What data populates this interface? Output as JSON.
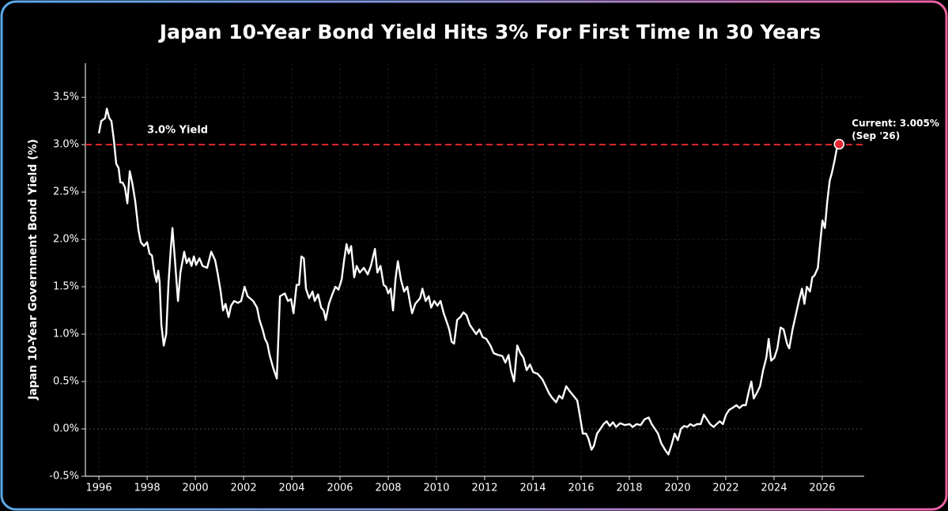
{
  "chart_data": {
    "type": "line",
    "title": "Japan 10-Year Bond Yield Hits 3% For First Time In 30 Years",
    "y_label": "Japan 10-Year Government Bond Yield (%)",
    "x": [
      1996.0,
      1996.1,
      1996.26,
      1996.33,
      1996.43,
      1996.52,
      1996.62,
      1996.72,
      1996.82,
      1996.89,
      1996.98,
      1997.08,
      1997.18,
      1997.28,
      1997.38,
      1997.51,
      1997.64,
      1997.74,
      1997.87,
      1998.0,
      1998.1,
      1998.2,
      1998.3,
      1998.39,
      1998.46,
      1998.52,
      1998.59,
      1998.69,
      1998.79,
      1998.89,
      1998.98,
      1999.05,
      1999.15,
      1999.28,
      1999.38,
      1999.54,
      1999.64,
      1999.74,
      1999.84,
      1999.94,
      2000.03,
      2000.17,
      2000.3,
      2000.49,
      2000.66,
      2000.82,
      2000.92,
      2001.05,
      2001.15,
      2001.25,
      2001.38,
      2001.48,
      2001.61,
      2001.77,
      2001.9,
      2002.04,
      2002.17,
      2002.4,
      2002.56,
      2002.66,
      2002.79,
      2002.89,
      2002.99,
      2003.08,
      2003.22,
      2003.38,
      2003.51,
      2003.71,
      2003.84,
      2003.97,
      2004.07,
      2004.2,
      2004.3,
      2004.4,
      2004.5,
      2004.59,
      2004.72,
      2004.86,
      2004.95,
      2005.09,
      2005.22,
      2005.32,
      2005.41,
      2005.54,
      2005.68,
      2005.81,
      2005.94,
      2006.07,
      2006.17,
      2006.27,
      2006.36,
      2006.46,
      2006.59,
      2006.69,
      2006.82,
      2006.99,
      2007.15,
      2007.28,
      2007.45,
      2007.55,
      2007.68,
      2007.81,
      2007.91,
      2008.0,
      2008.1,
      2008.2,
      2008.3,
      2008.4,
      2008.53,
      2008.66,
      2008.79,
      2008.89,
      2008.99,
      2009.12,
      2009.32,
      2009.42,
      2009.55,
      2009.68,
      2009.78,
      2009.91,
      2010.04,
      2010.17,
      2010.3,
      2010.4,
      2010.53,
      2010.63,
      2010.73,
      2010.86,
      2010.99,
      2011.12,
      2011.25,
      2011.38,
      2011.51,
      2011.65,
      2011.78,
      2011.91,
      2012.07,
      2012.24,
      2012.37,
      2012.56,
      2012.73,
      2012.86,
      2012.99,
      2013.09,
      2013.22,
      2013.35,
      2013.48,
      2013.61,
      2013.74,
      2013.88,
      2014.01,
      2014.2,
      2014.4,
      2014.53,
      2014.66,
      2014.79,
      2014.96,
      2015.09,
      2015.22,
      2015.38,
      2015.52,
      2015.68,
      2015.84,
      2015.94,
      2016.07,
      2016.2,
      2016.3,
      2016.43,
      2016.53,
      2016.66,
      2016.8,
      2016.93,
      2017.06,
      2017.19,
      2017.32,
      2017.45,
      2017.62,
      2017.81,
      2018.01,
      2018.14,
      2018.3,
      2018.47,
      2018.63,
      2018.8,
      2018.93,
      2019.06,
      2019.19,
      2019.32,
      2019.48,
      2019.62,
      2019.75,
      2019.88,
      2020.01,
      2020.14,
      2020.27,
      2020.4,
      2020.53,
      2020.67,
      2020.8,
      2020.96,
      2021.09,
      2021.22,
      2021.35,
      2021.49,
      2021.62,
      2021.75,
      2021.88,
      2022.01,
      2022.14,
      2022.27,
      2022.44,
      2022.57,
      2022.7,
      2022.83,
      2022.96,
      2023.06,
      2023.16,
      2023.29,
      2023.42,
      2023.55,
      2023.68,
      2023.78,
      2023.88,
      2024.01,
      2024.14,
      2024.27,
      2024.4,
      2024.54,
      2024.63,
      2024.77,
      2024.9,
      2025.03,
      2025.16,
      2025.26,
      2025.36,
      2025.49,
      2025.59,
      2025.68,
      2025.82,
      2025.91,
      2026.01,
      2026.11,
      2026.21,
      2026.31,
      2026.4,
      2026.5,
      2026.6,
      2026.7
    ],
    "series": [
      {
        "name": "Japan 10-Year Bond Yield",
        "color": "#ffffff",
        "values": [
          3.12,
          3.25,
          3.28,
          3.38,
          3.28,
          3.25,
          3.05,
          2.8,
          2.75,
          2.6,
          2.6,
          2.55,
          2.38,
          2.72,
          2.6,
          2.4,
          2.1,
          1.97,
          1.93,
          1.97,
          1.85,
          1.83,
          1.65,
          1.55,
          1.67,
          1.55,
          1.1,
          0.88,
          1.0,
          1.55,
          1.9,
          2.12,
          1.8,
          1.35,
          1.65,
          1.87,
          1.75,
          1.8,
          1.72,
          1.82,
          1.73,
          1.8,
          1.72,
          1.7,
          1.87,
          1.78,
          1.65,
          1.45,
          1.25,
          1.32,
          1.18,
          1.3,
          1.35,
          1.33,
          1.35,
          1.5,
          1.4,
          1.35,
          1.28,
          1.15,
          1.05,
          0.95,
          0.9,
          0.78,
          0.65,
          0.53,
          1.4,
          1.43,
          1.35,
          1.37,
          1.22,
          1.52,
          1.52,
          1.82,
          1.8,
          1.48,
          1.38,
          1.45,
          1.35,
          1.42,
          1.28,
          1.25,
          1.15,
          1.32,
          1.42,
          1.5,
          1.47,
          1.58,
          1.78,
          1.95,
          1.85,
          1.93,
          1.6,
          1.72,
          1.65,
          1.7,
          1.63,
          1.72,
          1.9,
          1.65,
          1.72,
          1.52,
          1.5,
          1.43,
          1.48,
          1.25,
          1.58,
          1.77,
          1.57,
          1.45,
          1.5,
          1.35,
          1.22,
          1.32,
          1.38,
          1.48,
          1.35,
          1.4,
          1.28,
          1.35,
          1.3,
          1.35,
          1.22,
          1.15,
          1.05,
          0.92,
          0.9,
          1.15,
          1.18,
          1.23,
          1.2,
          1.1,
          1.05,
          1.0,
          1.05,
          0.97,
          0.95,
          0.88,
          0.8,
          0.78,
          0.77,
          0.7,
          0.78,
          0.62,
          0.5,
          0.88,
          0.8,
          0.75,
          0.62,
          0.68,
          0.6,
          0.58,
          0.52,
          0.45,
          0.38,
          0.33,
          0.28,
          0.35,
          0.32,
          0.45,
          0.4,
          0.35,
          0.3,
          0.15,
          -0.05,
          -0.05,
          -0.1,
          -0.22,
          -0.18,
          -0.05,
          0.0,
          0.05,
          0.08,
          0.03,
          0.07,
          0.02,
          0.06,
          0.04,
          0.05,
          0.02,
          0.05,
          0.04,
          0.1,
          0.12,
          0.05,
          0.0,
          -0.05,
          -0.15,
          -0.22,
          -0.27,
          -0.17,
          -0.05,
          -0.12,
          0.0,
          0.03,
          0.02,
          0.05,
          0.03,
          0.05,
          0.05,
          0.15,
          0.1,
          0.05,
          0.02,
          0.05,
          0.08,
          0.05,
          0.15,
          0.2,
          0.22,
          0.25,
          0.22,
          0.25,
          0.25,
          0.4,
          0.5,
          0.32,
          0.38,
          0.45,
          0.62,
          0.75,
          0.95,
          0.72,
          0.75,
          0.85,
          1.07,
          1.05,
          0.9,
          0.85,
          1.05,
          1.2,
          1.35,
          1.48,
          1.32,
          1.5,
          1.45,
          1.6,
          1.62,
          1.7,
          1.95,
          2.2,
          2.12,
          2.4,
          2.62,
          2.7,
          2.82,
          2.95,
          3.005
        ]
      }
    ],
    "xlim": [
      1995.44,
      2027.74
    ],
    "xticks": [
      1996,
      1998,
      2000,
      2002,
      2004,
      2006,
      2008,
      2010,
      2012,
      2014,
      2016,
      2018,
      2020,
      2022,
      2024,
      2026
    ],
    "ylim": [
      -0.5,
      3.86
    ],
    "yticks": [
      {
        "value": -0.5,
        "label": "-0.5%"
      },
      {
        "value": 0,
        "label": "0.0%"
      },
      {
        "value": 0.5,
        "label": "0.5%"
      },
      {
        "value": 1,
        "label": "1.0%"
      },
      {
        "value": 1.5,
        "label": "1.5%"
      },
      {
        "value": 2,
        "label": "2.0%"
      },
      {
        "value": 2.5,
        "label": "2.5%"
      },
      {
        "value": 3,
        "label": "3.0%"
      },
      {
        "value": 3.5,
        "label": "3.5%"
      }
    ],
    "grid": true,
    "reference_line": {
      "value": 3,
      "label": "3.0% Yield",
      "color": "#e0282e"
    },
    "current_annotation": {
      "lines": [
        "Current: 3.005%",
        "(Sep '26)"
      ],
      "marker_color": "#e0282e"
    }
  }
}
